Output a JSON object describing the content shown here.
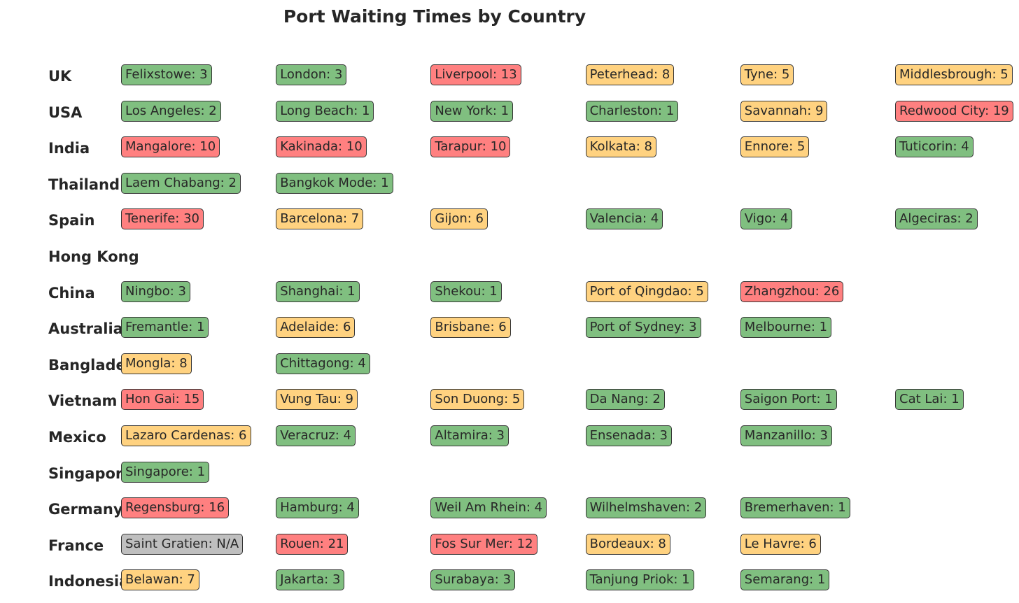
{
  "chart_data": {
    "type": "table",
    "title": "Port Waiting Times by Country",
    "status_colors": {
      "low": "#7fbf7f",
      "medium": "#ffd27f",
      "high": "#ff7f7f",
      "unknown": "#bfbfbf"
    },
    "countries": [
      {
        "name": "UK",
        "ports": [
          {
            "port": "Felixstowe",
            "wait": 3,
            "text": "Felixstowe: 3",
            "status": "low"
          },
          {
            "port": "London",
            "wait": 3,
            "text": "London: 3",
            "status": "low"
          },
          {
            "port": "Liverpool",
            "wait": 13,
            "text": "Liverpool: 13",
            "status": "high"
          },
          {
            "port": "Peterhead",
            "wait": 8,
            "text": "Peterhead: 8",
            "status": "medium"
          },
          {
            "port": "Tyne",
            "wait": 5,
            "text": "Tyne: 5",
            "status": "medium"
          },
          {
            "port": "Middlesbrough",
            "wait": 5,
            "text": "Middlesbrough: 5",
            "status": "medium"
          }
        ]
      },
      {
        "name": "USA",
        "ports": [
          {
            "port": "Los Angeles",
            "wait": 2,
            "text": "Los Angeles: 2",
            "status": "low"
          },
          {
            "port": "Long Beach",
            "wait": 1,
            "text": "Long Beach: 1",
            "status": "low"
          },
          {
            "port": "New York",
            "wait": 1,
            "text": "New York: 1",
            "status": "low"
          },
          {
            "port": "Charleston",
            "wait": 1,
            "text": "Charleston: 1",
            "status": "low"
          },
          {
            "port": "Savannah",
            "wait": 9,
            "text": "Savannah: 9",
            "status": "medium"
          },
          {
            "port": "Redwood City",
            "wait": 19,
            "text": "Redwood City: 19",
            "status": "high"
          }
        ]
      },
      {
        "name": "India",
        "ports": [
          {
            "port": "Mangalore",
            "wait": 10,
            "text": "Mangalore: 10",
            "status": "high"
          },
          {
            "port": "Kakinada",
            "wait": 10,
            "text": "Kakinada: 10",
            "status": "high"
          },
          {
            "port": "Tarapur",
            "wait": 10,
            "text": "Tarapur: 10",
            "status": "high"
          },
          {
            "port": "Kolkata",
            "wait": 8,
            "text": "Kolkata: 8",
            "status": "medium"
          },
          {
            "port": "Ennore",
            "wait": 5,
            "text": "Ennore: 5",
            "status": "medium"
          },
          {
            "port": "Tuticorin",
            "wait": 4,
            "text": "Tuticorin: 4",
            "status": "low"
          }
        ]
      },
      {
        "name": "Thailand",
        "ports": [
          {
            "port": "Laem Chabang",
            "wait": 2,
            "text": "Laem Chabang: 2",
            "status": "low"
          },
          {
            "port": "Bangkok Mode",
            "wait": 1,
            "text": "Bangkok Mode: 1",
            "status": "low"
          }
        ]
      },
      {
        "name": "Spain",
        "ports": [
          {
            "port": "Tenerife",
            "wait": 30,
            "text": "Tenerife: 30",
            "status": "high"
          },
          {
            "port": "Barcelona",
            "wait": 7,
            "text": "Barcelona: 7",
            "status": "medium"
          },
          {
            "port": "Gijon",
            "wait": 6,
            "text": "Gijon: 6",
            "status": "medium"
          },
          {
            "port": "Valencia",
            "wait": 4,
            "text": "Valencia: 4",
            "status": "low"
          },
          {
            "port": "Vigo",
            "wait": 4,
            "text": "Vigo: 4",
            "status": "low"
          },
          {
            "port": "Algeciras",
            "wait": 2,
            "text": "Algeciras: 2",
            "status": "low"
          }
        ]
      },
      {
        "name": "Hong Kong",
        "ports": []
      },
      {
        "name": "China",
        "ports": [
          {
            "port": "Ningbo",
            "wait": 3,
            "text": "Ningbo: 3",
            "status": "low"
          },
          {
            "port": "Shanghai",
            "wait": 1,
            "text": "Shanghai: 1",
            "status": "low"
          },
          {
            "port": "Shekou",
            "wait": 1,
            "text": "Shekou: 1",
            "status": "low"
          },
          {
            "port": "Port of Qingdao",
            "wait": 5,
            "text": "Port of Qingdao: 5",
            "status": "medium"
          },
          {
            "port": "Zhangzhou",
            "wait": 26,
            "text": "Zhangzhou: 26",
            "status": "high"
          }
        ]
      },
      {
        "name": "Australia",
        "ports": [
          {
            "port": "Fremantle",
            "wait": 1,
            "text": "Fremantle: 1",
            "status": "low"
          },
          {
            "port": "Adelaide",
            "wait": 6,
            "text": "Adelaide: 6",
            "status": "medium"
          },
          {
            "port": "Brisbane",
            "wait": 6,
            "text": "Brisbane: 6",
            "status": "medium"
          },
          {
            "port": "Port of Sydney",
            "wait": 3,
            "text": "Port of Sydney: 3",
            "status": "low"
          },
          {
            "port": "Melbourne",
            "wait": 1,
            "text": "Melbourne: 1",
            "status": "low"
          }
        ]
      },
      {
        "name": "Bangladesh",
        "ports": [
          {
            "port": "Mongla",
            "wait": 8,
            "text": "Mongla: 8",
            "status": "medium"
          },
          {
            "port": "Chittagong",
            "wait": 4,
            "text": "Chittagong: 4",
            "status": "low"
          }
        ]
      },
      {
        "name": "Vietnam",
        "ports": [
          {
            "port": "Hon Gai",
            "wait": 15,
            "text": "Hon Gai: 15",
            "status": "high"
          },
          {
            "port": "Vung Tau",
            "wait": 9,
            "text": "Vung Tau: 9",
            "status": "medium"
          },
          {
            "port": "Son Duong",
            "wait": 5,
            "text": "Son Duong: 5",
            "status": "medium"
          },
          {
            "port": "Da Nang",
            "wait": 2,
            "text": "Da Nang: 2",
            "status": "low"
          },
          {
            "port": "Saigon Port",
            "wait": 1,
            "text": "Saigon Port: 1",
            "status": "low"
          },
          {
            "port": "Cat Lai",
            "wait": 1,
            "text": "Cat Lai: 1",
            "status": "low"
          }
        ]
      },
      {
        "name": "Mexico",
        "ports": [
          {
            "port": "Lazaro Cardenas",
            "wait": 6,
            "text": "Lazaro Cardenas: 6",
            "status": "medium"
          },
          {
            "port": "Veracruz",
            "wait": 4,
            "text": "Veracruz: 4",
            "status": "low"
          },
          {
            "port": "Altamira",
            "wait": 3,
            "text": "Altamira: 3",
            "status": "low"
          },
          {
            "port": "Ensenada",
            "wait": 3,
            "text": "Ensenada: 3",
            "status": "low"
          },
          {
            "port": "Manzanillo",
            "wait": 3,
            "text": "Manzanillo: 3",
            "status": "low"
          }
        ]
      },
      {
        "name": "Singapore",
        "ports": [
          {
            "port": "Singapore",
            "wait": 1,
            "text": "Singapore: 1",
            "status": "low"
          }
        ]
      },
      {
        "name": "Germany",
        "ports": [
          {
            "port": "Regensburg",
            "wait": 16,
            "text": "Regensburg: 16",
            "status": "high"
          },
          {
            "port": "Hamburg",
            "wait": 4,
            "text": "Hamburg: 4",
            "status": "low"
          },
          {
            "port": "Weil Am Rhein",
            "wait": 4,
            "text": "Weil Am Rhein: 4",
            "status": "low"
          },
          {
            "port": "Wilhelmshaven",
            "wait": 2,
            "text": "Wilhelmshaven: 2",
            "status": "low"
          },
          {
            "port": "Bremerhaven",
            "wait": 1,
            "text": "Bremerhaven: 1",
            "status": "low"
          }
        ]
      },
      {
        "name": "France",
        "ports": [
          {
            "port": "Saint Gratien",
            "wait": null,
            "text": "Saint Gratien: N/A",
            "status": "unknown"
          },
          {
            "port": "Rouen",
            "wait": 21,
            "text": "Rouen: 21",
            "status": "high"
          },
          {
            "port": "Fos Sur Mer",
            "wait": 12,
            "text": "Fos Sur Mer: 12",
            "status": "high"
          },
          {
            "port": "Bordeaux",
            "wait": 8,
            "text": "Bordeaux: 8",
            "status": "medium"
          },
          {
            "port": "Le Havre",
            "wait": 6,
            "text": "Le Havre: 6",
            "status": "medium"
          }
        ]
      },
      {
        "name": "Indonesia",
        "ports": [
          {
            "port": "Belawan",
            "wait": 7,
            "text": "Belawan: 7",
            "status": "medium"
          },
          {
            "port": "Jakarta",
            "wait": 3,
            "text": "Jakarta: 3",
            "status": "low"
          },
          {
            "port": "Surabaya",
            "wait": 3,
            "text": "Surabaya: 3",
            "status": "low"
          },
          {
            "port": "Tanjung Priok",
            "wait": 1,
            "text": "Tanjung Priok: 1",
            "status": "low"
          },
          {
            "port": "Semarang",
            "wait": 1,
            "text": "Semarang: 1",
            "status": "low"
          }
        ]
      }
    ]
  }
}
